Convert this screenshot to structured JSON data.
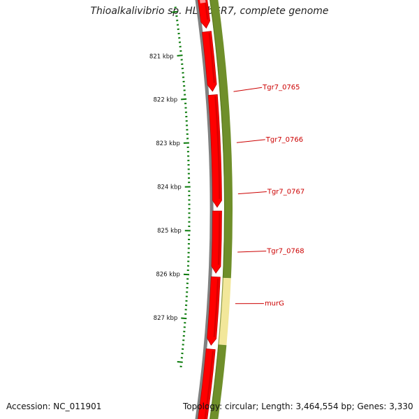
{
  "title": "Thioalkalivibrio sp. HL-EbGR7, complete genome",
  "accession_label": "Accession: NC_011901",
  "topology_line": "Topology: circular; Length: 3,464,554 bp; Genes: 3,330",
  "ruler": {
    "ticks": [
      {
        "label": "821 kbp",
        "kbp": 821
      },
      {
        "label": "822 kbp",
        "kbp": 822
      },
      {
        "label": "823 kbp",
        "kbp": 823
      },
      {
        "label": "824 kbp",
        "kbp": 824
      },
      {
        "label": "825 kbp",
        "kbp": 825
      },
      {
        "label": "826 kbp",
        "kbp": 826
      },
      {
        "label": "827 kbp",
        "kbp": 827
      }
    ]
  },
  "genes": [
    {
      "name": "Tgr7_0765",
      "label_color": "#cc0000"
    },
    {
      "name": "Tgr7_0766",
      "label_color": "#cc0000"
    },
    {
      "name": "Tgr7_0767",
      "label_color": "#cc0000"
    },
    {
      "name": "Tgr7_0768",
      "label_color": "#cc0000"
    },
    {
      "name": "murG",
      "label_color": "#cc0000"
    }
  ],
  "colors": {
    "backbone": "#808080",
    "gene_arrow": "#ff0000",
    "gene_arrow_dark": "#c00000",
    "cog_track": "#6f8f2a",
    "cog_highlight": "#f2e79a",
    "tick_mark": "#0a7a0a",
    "label_line": "#cc0000"
  }
}
